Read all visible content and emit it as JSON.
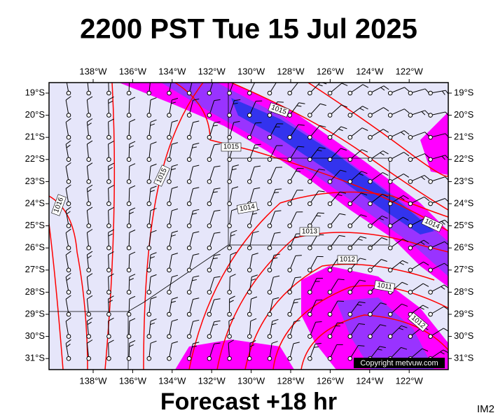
{
  "title": "2200 PST Tue 15 Jul 2025",
  "subtitle": "Forecast +18 hr",
  "corner": "IM2",
  "copyright": "Copyright metvuw.com",
  "longitudes": [
    "138°W",
    "136°W",
    "134°W",
    "132°W",
    "130°W",
    "128°W",
    "126°W",
    "124°W",
    "122°W"
  ],
  "latitudes": [
    "19°S",
    "20°S",
    "21°S",
    "22°S",
    "23°S",
    "24°S",
    "25°S",
    "26°S",
    "27°S",
    "28°S",
    "29°S",
    "30°S",
    "31°S"
  ],
  "isobars": [
    "1015",
    "1015",
    "1015",
    "1016",
    "1014",
    "1013",
    "1012",
    "1011",
    "1014",
    "1012"
  ]
}
